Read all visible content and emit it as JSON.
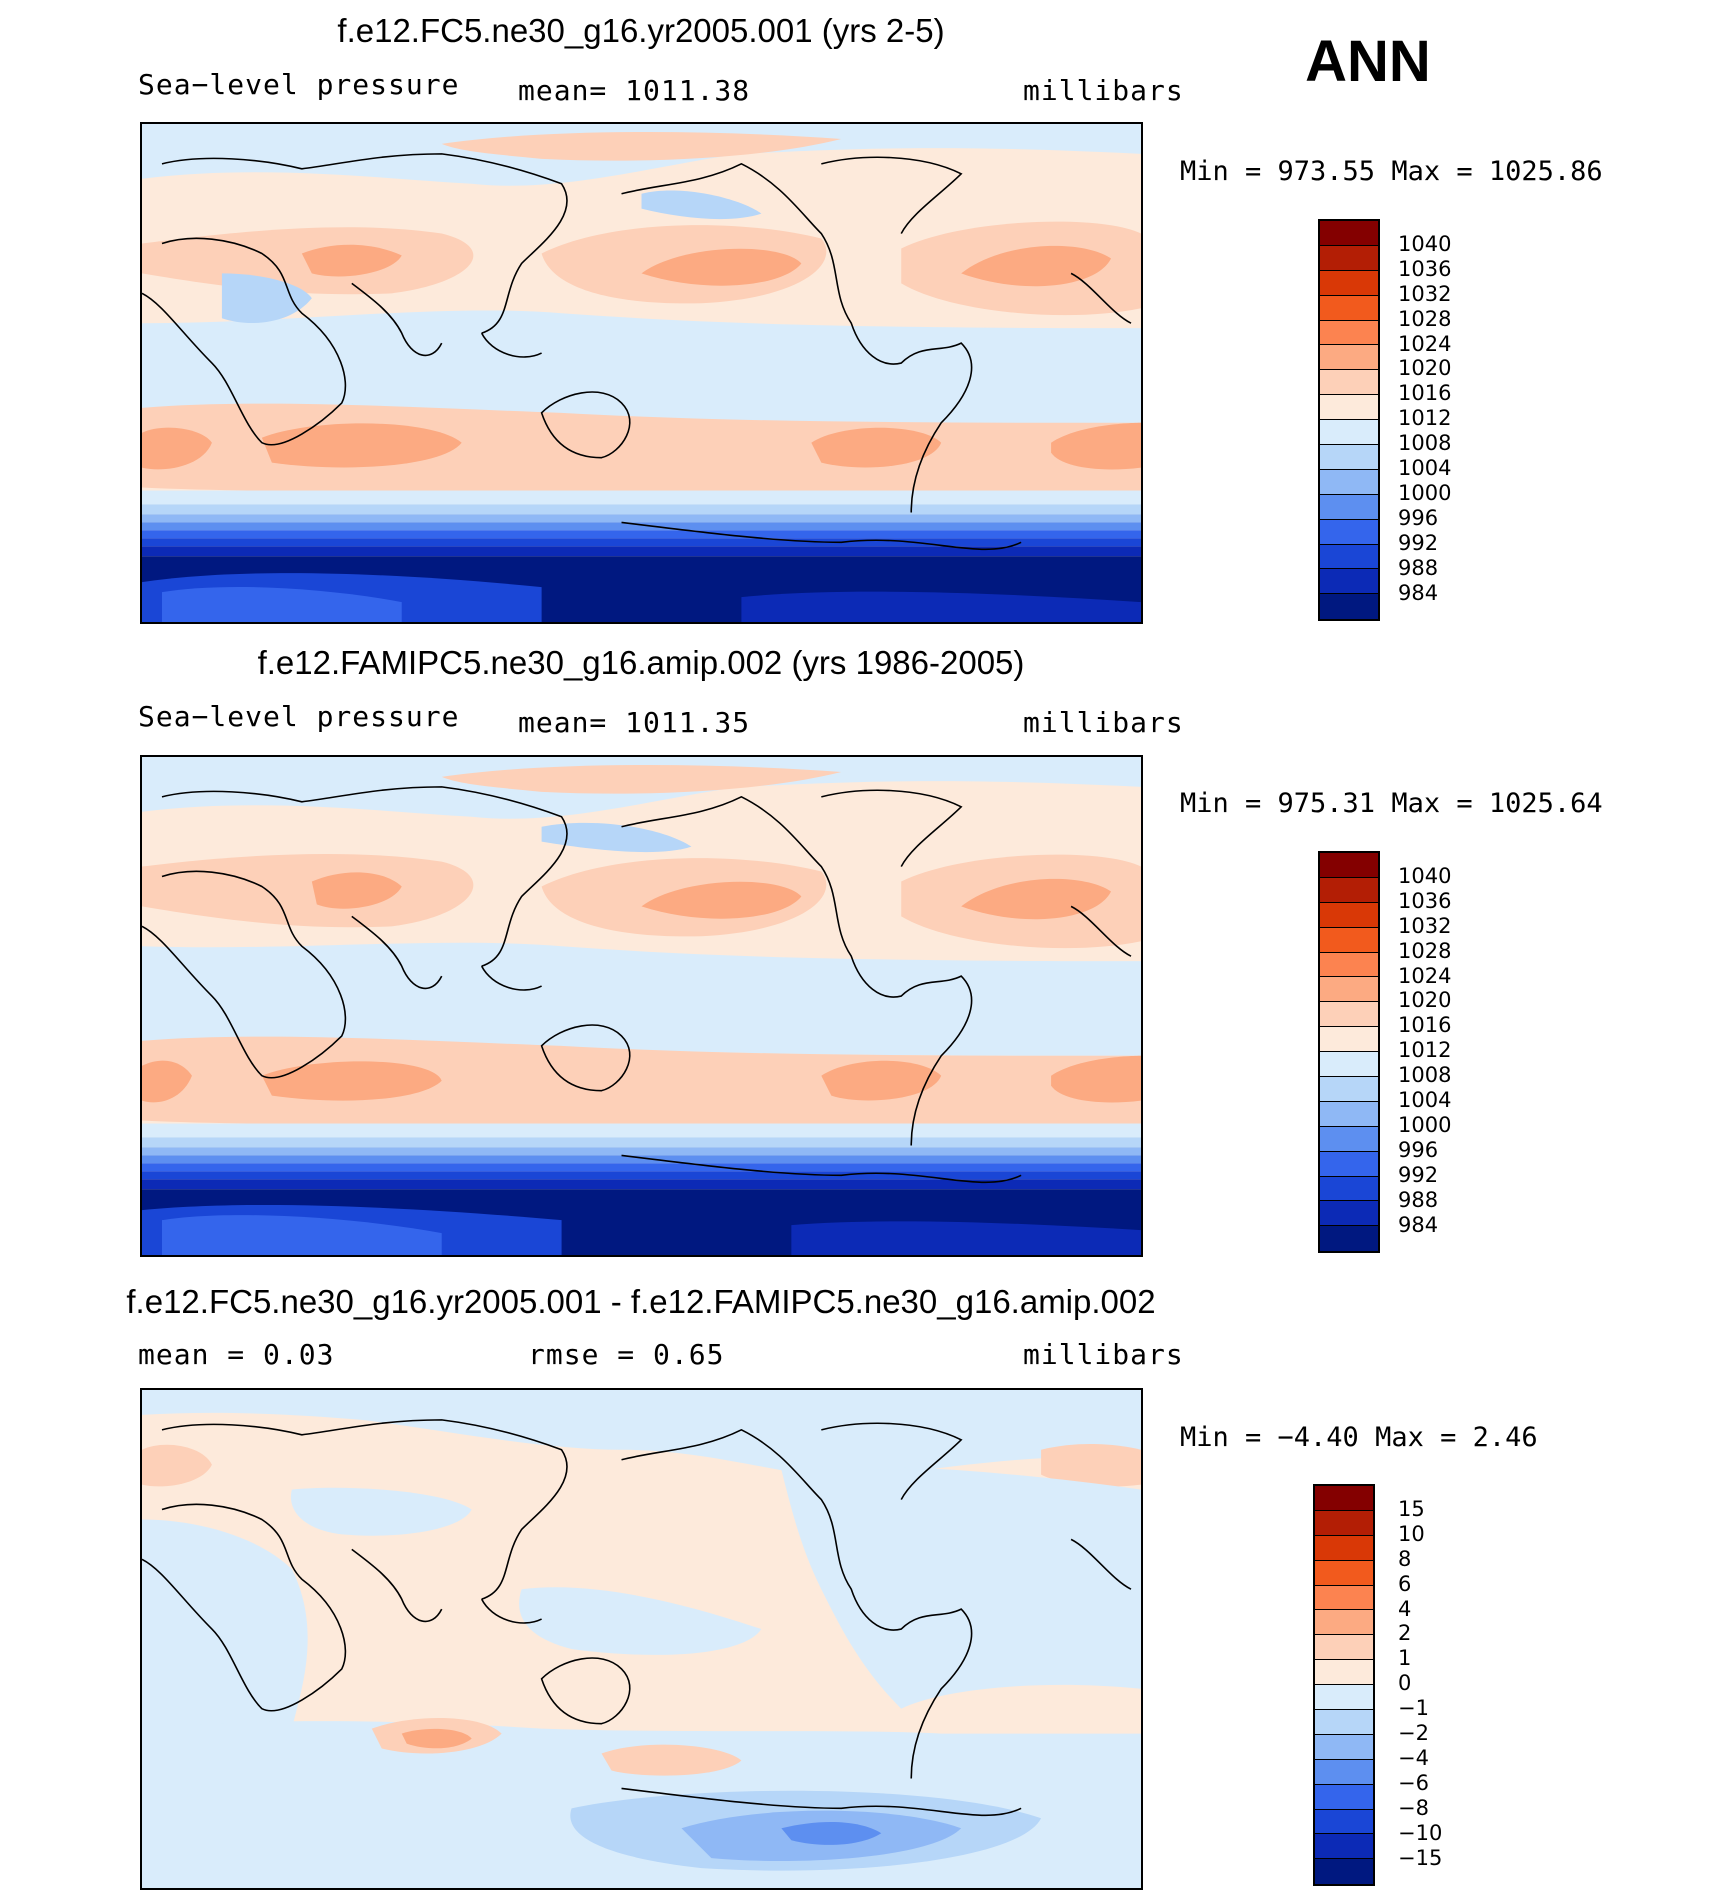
{
  "season": "ANN",
  "panels": [
    {
      "title": "f.e12.FC5.ne30_g16.yr2005.001 (yrs 2-5)",
      "left_label": "Sea−level pressure",
      "center_label": "mean=  1011.38",
      "right_label": "millibars",
      "minmax": "Min  =  973.55  Max  =  1025.86",
      "colorbar": {
        "levels": [
          "1040",
          "1036",
          "1032",
          "1028",
          "1024",
          "1020",
          "1016",
          "1012",
          "1008",
          "1004",
          "1000",
          "996",
          "992",
          "988",
          "984"
        ],
        "colors": [
          "#840000",
          "#b31e05",
          "#d93806",
          "#f25a1d",
          "#fc8350",
          "#fcaa82",
          "#fdd0b8",
          "#fdeadb",
          "#d9ecfb",
          "#b6d6f8",
          "#8fb8f5",
          "#5d8ff0",
          "#3465ec",
          "#1a46d6",
          "#0c2ab6",
          "#001880"
        ]
      }
    },
    {
      "title": "f.e12.FAMIPC5.ne30_g16.amip.002 (yrs 1986-2005)",
      "left_label": "Sea−level pressure",
      "center_label": "mean=  1011.35",
      "right_label": "millibars",
      "minmax": "Min  =  975.31  Max  =  1025.64",
      "colorbar": {
        "levels": [
          "1040",
          "1036",
          "1032",
          "1028",
          "1024",
          "1020",
          "1016",
          "1012",
          "1008",
          "1004",
          "1000",
          "996",
          "992",
          "988",
          "984"
        ],
        "colors": [
          "#840000",
          "#b31e05",
          "#d93806",
          "#f25a1d",
          "#fc8350",
          "#fcaa82",
          "#fdd0b8",
          "#fdeadb",
          "#d9ecfb",
          "#b6d6f8",
          "#8fb8f5",
          "#5d8ff0",
          "#3465ec",
          "#1a46d6",
          "#0c2ab6",
          "#001880"
        ]
      }
    },
    {
      "title": "f.e12.FC5.ne30_g16.yr2005.001 - f.e12.FAMIPC5.ne30_g16.amip.002",
      "left_label": "mean  =      0.03",
      "center_label": "rmse  =      0.65",
      "right_label": "millibars",
      "minmax": "Min  =    −4.40  Max  =      2.46",
      "colorbar": {
        "levels": [
          "15",
          "10",
          "8",
          "6",
          "4",
          "2",
          "1",
          "0",
          "−1",
          "−2",
          "−4",
          "−6",
          "−8",
          "−10",
          "−15"
        ],
        "colors": [
          "#840000",
          "#b31e05",
          "#d93806",
          "#f25a1d",
          "#fc8350",
          "#fcaa82",
          "#fdd0b8",
          "#fdeadb",
          "#d9ecfb",
          "#b6d6f8",
          "#8fb8f5",
          "#5d8ff0",
          "#3465ec",
          "#1a46d6",
          "#0c2ab6",
          "#001880"
        ]
      }
    }
  ]
}
